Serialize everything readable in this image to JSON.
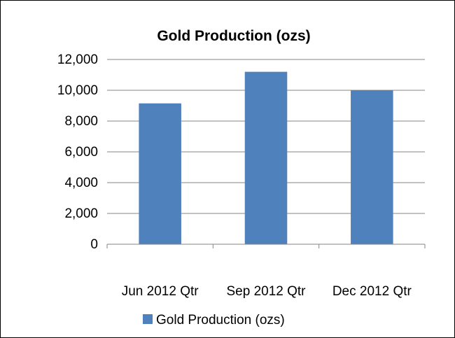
{
  "chart_data": {
    "type": "bar",
    "title": "Gold Production (ozs)",
    "categories": [
      "Jun 2012 Qtr",
      "Sep 2012 Qtr",
      "Dec 2012 Qtr"
    ],
    "series": [
      {
        "name": "Gold Production (ozs)",
        "values": [
          9150,
          11200,
          10000
        ],
        "color": "#4f81bd"
      }
    ],
    "xlabel": "",
    "ylabel": "",
    "ylim": [
      0,
      12000
    ],
    "yticks": [
      0,
      2000,
      4000,
      6000,
      8000,
      10000,
      12000
    ],
    "ytick_labels": [
      "0",
      "2,000",
      "4,000",
      "6,000",
      "8,000",
      "10,000",
      "12,000"
    ],
    "grid": true,
    "legend_position": "bottom"
  }
}
